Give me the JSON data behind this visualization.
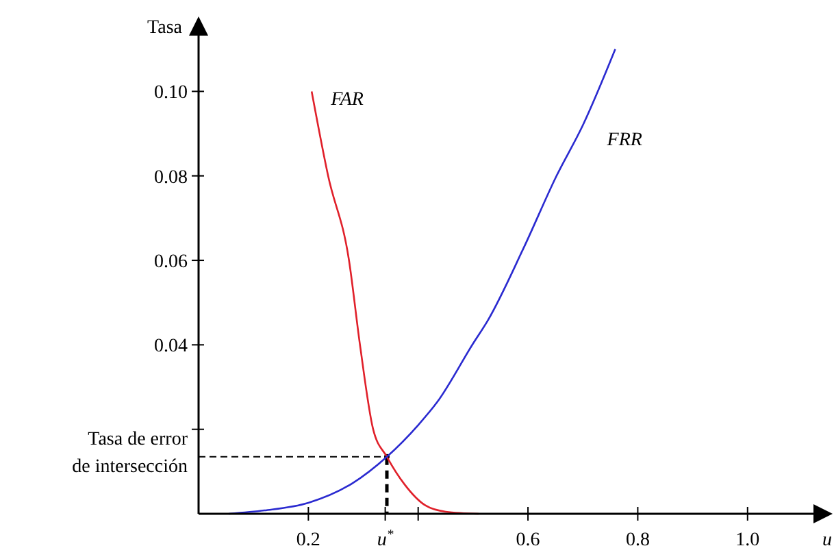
{
  "chart_data": {
    "type": "line",
    "ylabel": "Tasa",
    "xlabel": "u",
    "xlim": [
      0,
      1.13
    ],
    "ylim": [
      0,
      0.1145
    ],
    "xticks": [
      0.2,
      {
        "value": 0.34,
        "label": "u$^{*}$"
      },
      {
        "value": 0.4,
        "label": null
      },
      0.6,
      0.8,
      {
        "value": 1,
        "label": "1.0"
      }
    ],
    "yticks": [
      {
        "value": 0.02,
        "label": null
      },
      0.04,
      0.06,
      0.08,
      {
        "value": 0.1,
        "label": "0.10"
      }
    ],
    "grid": false,
    "marker": "none",
    "line_style": "solid",
    "series": [
      {
        "name": "FAR",
        "color": "#e0202a",
        "x": [
          0.206,
          0.236,
          0.274,
          0.294,
          0.318,
          0.343,
          0.375,
          0.413,
          0.45,
          0.51
        ],
        "values": [
          0.1,
          0.08,
          0.06,
          0.04,
          0.02,
          0.0135,
          0.007,
          0.002,
          0.0005,
          0
        ]
      },
      {
        "name": "FRR",
        "color": "#2a2ad0",
        "x": [
          0.055,
          0.12,
          0.2,
          0.28,
          0.343,
          0.4,
          0.435,
          0.5,
          0.527,
          0.592,
          0.652,
          0.7,
          0.759
        ],
        "values": [
          0,
          0.0008,
          0.0026,
          0.0072,
          0.0135,
          0.021,
          0.0265,
          0.0403,
          0.0458,
          0.0629,
          0.08,
          0.092,
          0.11
        ]
      }
    ],
    "annotations": [
      {
        "text": "Tasa de error de intersección",
        "x": 0.343,
        "y": 0.0135
      }
    ]
  }
}
